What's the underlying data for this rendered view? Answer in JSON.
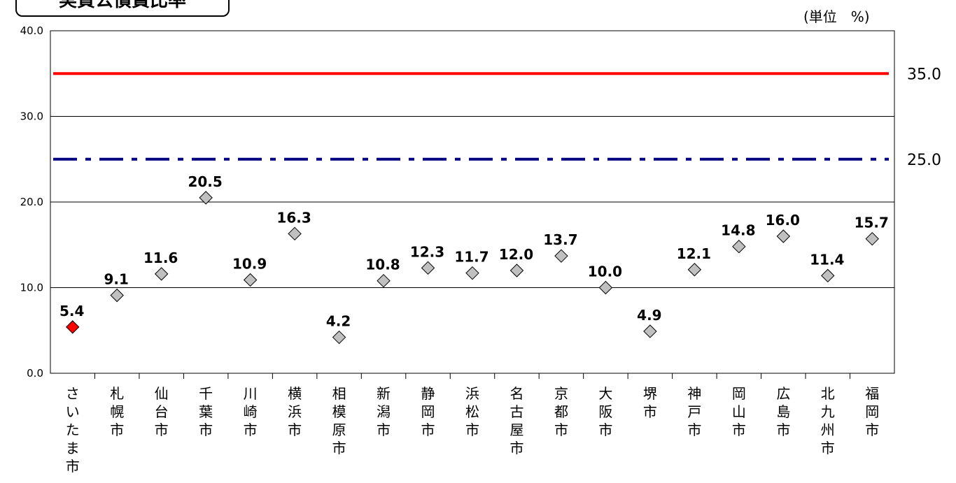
{
  "title": "実質公債費比率",
  "unit": "(単位　%)",
  "chart_data": {
    "type": "scatter",
    "title": "実質公債費比率",
    "unit": "(単位　%)",
    "ylim": [
      0,
      40
    ],
    "yticks": [
      "0.0",
      "10.0",
      "20.0",
      "30.0",
      "40.0"
    ],
    "grid": true,
    "categories": [
      "さいたま市",
      "札幌市",
      "仙台市",
      "千葉市",
      "川崎市",
      "横浜市",
      "相模原市",
      "新潟市",
      "静岡市",
      "浜松市",
      "名古屋市",
      "京都市",
      "大阪市",
      "堺市",
      "神戸市",
      "岡山市",
      "広島市",
      "北九州市",
      "福岡市"
    ],
    "values": [
      5.4,
      9.1,
      11.6,
      20.5,
      10.9,
      16.3,
      4.2,
      10.8,
      12.3,
      11.7,
      12.0,
      13.7,
      10.0,
      4.9,
      12.1,
      14.8,
      16.0,
      11.4,
      15.7
    ],
    "data_labels": [
      "5.4",
      "9.1",
      "11.6",
      "20.5",
      "10.9",
      "16.3",
      "4.2",
      "10.8",
      "12.3",
      "11.7",
      "12.0",
      "13.7",
      "10.0",
      "4.9",
      "12.1",
      "14.8",
      "16.0",
      "11.4",
      "15.7"
    ],
    "highlight_index": 0,
    "colors": {
      "highlight": "#ff0000",
      "marker": "#c0c0c0",
      "red_line": "#ff0000",
      "blue_line": "#000080"
    },
    "reference_lines": [
      {
        "value": 35.0,
        "label": "35.0",
        "style": "solid",
        "color": "#ff0000"
      },
      {
        "value": 25.0,
        "label": "25.0",
        "style": "dash-dot",
        "color": "#000080"
      }
    ]
  }
}
